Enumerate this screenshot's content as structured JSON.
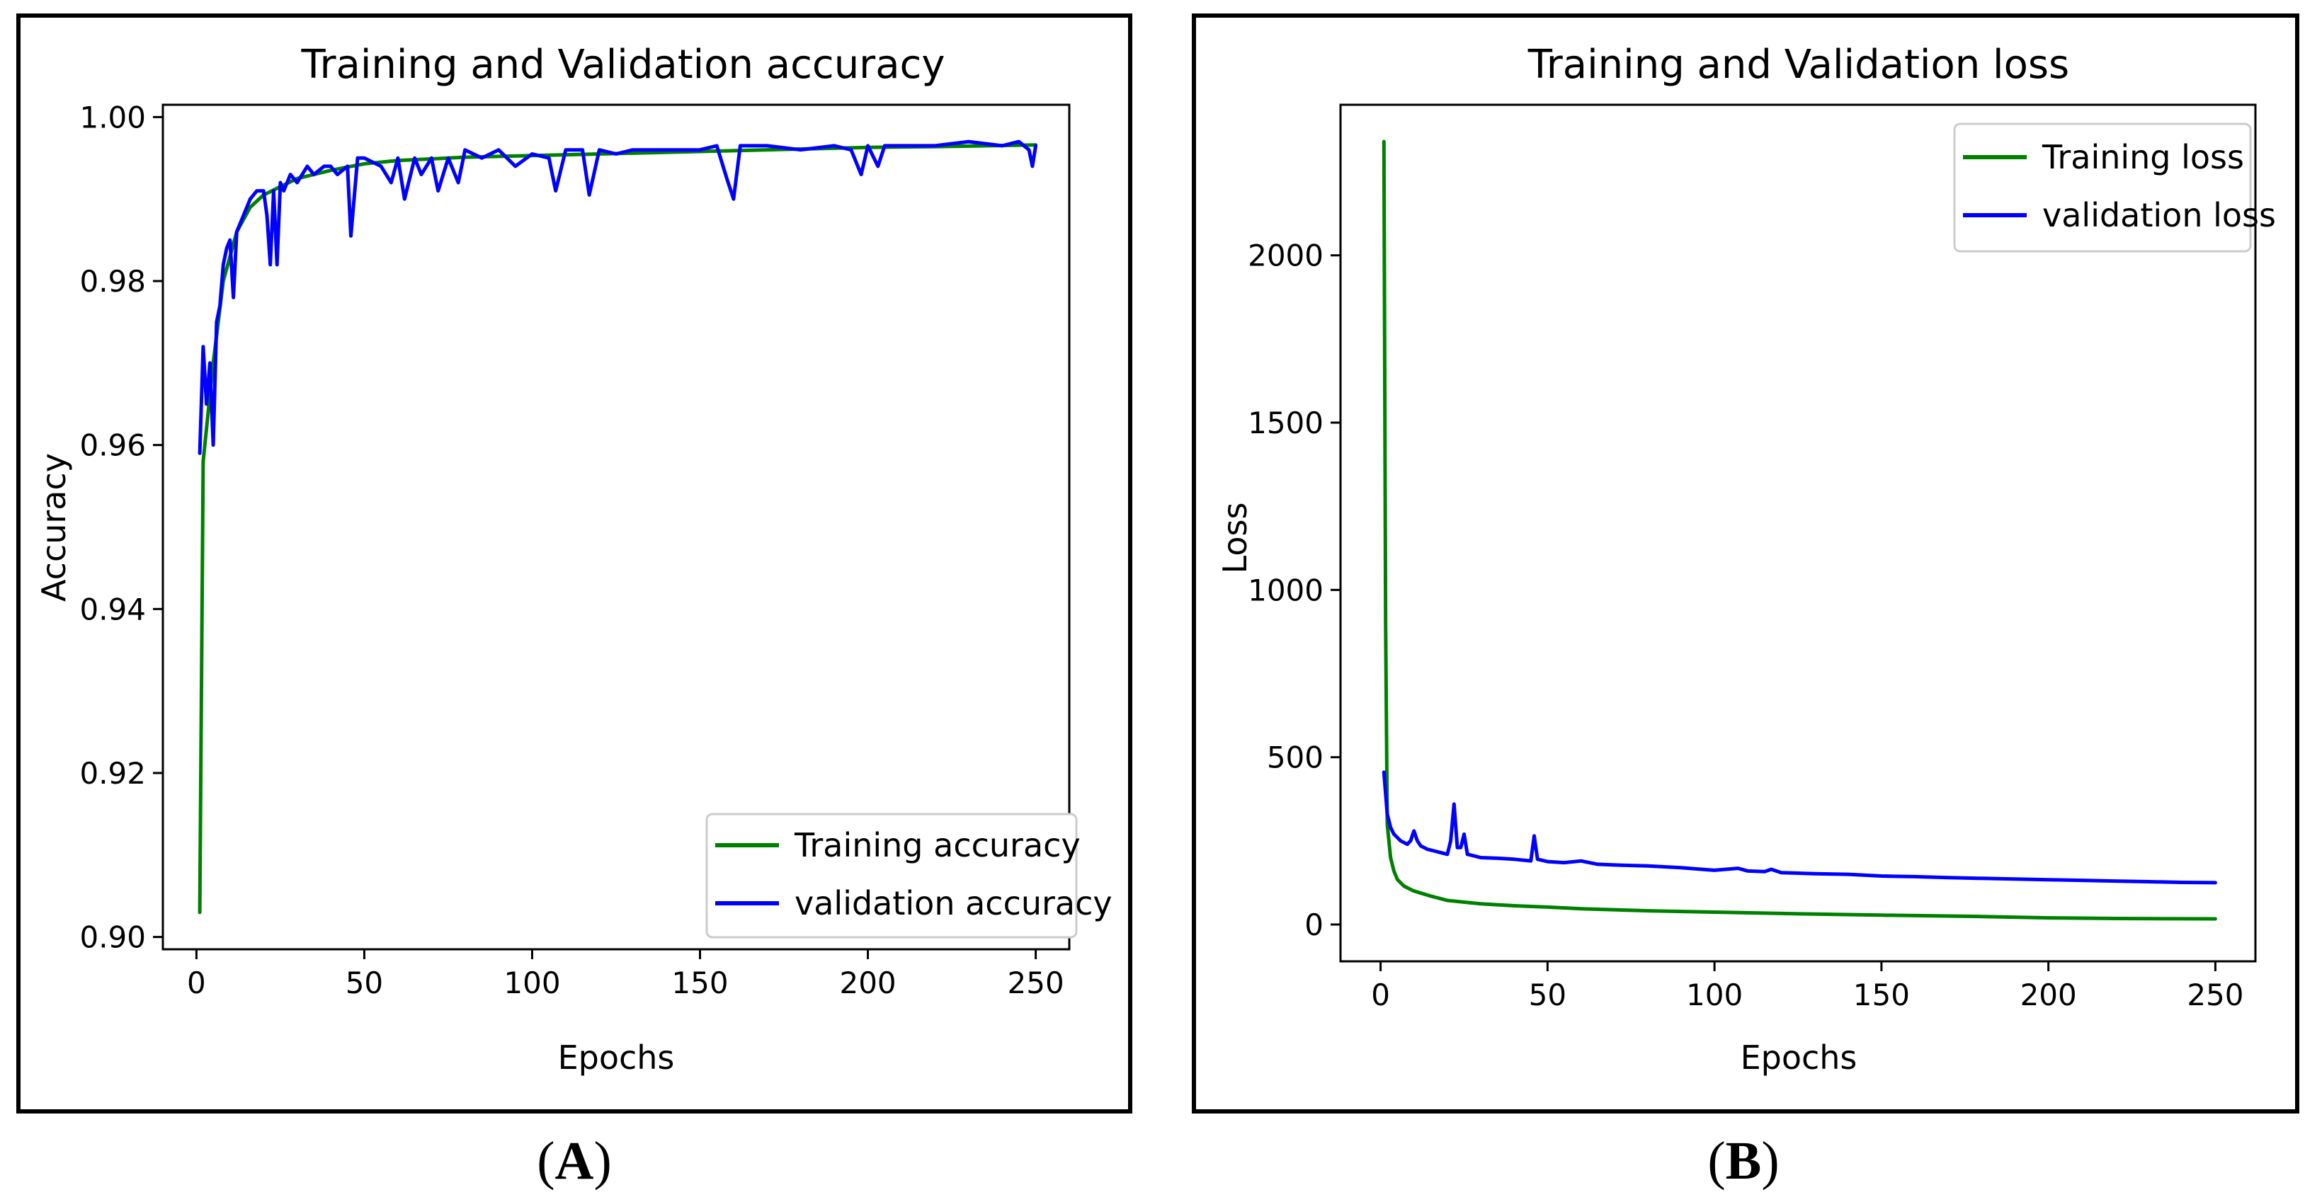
{
  "chart_data": [
    {
      "type": "line",
      "title": "Training and Validation accuracy",
      "xlabel": "Epochs",
      "ylabel": "Accuracy",
      "xlim": [
        -10,
        260
      ],
      "ylim": [
        0.8985,
        1.0015
      ],
      "xticks": [
        0,
        50,
        100,
        150,
        200,
        250
      ],
      "yticks": [
        0.9,
        0.92,
        0.94,
        0.96,
        0.98,
        1.0
      ],
      "xtick_labels": [
        "0",
        "50",
        "100",
        "150",
        "200",
        "250"
      ],
      "ytick_labels": [
        "0.90",
        "0.92",
        "0.94",
        "0.96",
        "0.98",
        "1.00"
      ],
      "legend_position": "lower-right",
      "panel_label": "A",
      "series": [
        {
          "name": "Training accuracy",
          "color": "#008000",
          "x": [
            1,
            2,
            3,
            5,
            8,
            12,
            16,
            20,
            25,
            30,
            40,
            50,
            60,
            80,
            100,
            120,
            150,
            180,
            200,
            220,
            250
          ],
          "y": [
            0.903,
            0.958,
            0.962,
            0.97,
            0.98,
            0.986,
            0.989,
            0.9905,
            0.9915,
            0.9925,
            0.9935,
            0.9943,
            0.9947,
            0.9951,
            0.9953,
            0.9955,
            0.9958,
            0.9961,
            0.9963,
            0.9964,
            0.9966
          ]
        },
        {
          "name": "validation accuracy",
          "color": "#0000ff",
          "x": [
            1,
            2,
            3,
            4,
            5,
            6,
            7,
            8,
            9,
            10,
            11,
            12,
            14,
            16,
            18,
            20,
            21,
            22,
            23,
            24,
            25,
            26,
            28,
            30,
            33,
            35,
            38,
            40,
            42,
            45,
            46,
            48,
            50,
            55,
            58,
            60,
            62,
            65,
            67,
            70,
            72,
            75,
            78,
            80,
            85,
            90,
            95,
            100,
            105,
            107,
            110,
            115,
            117,
            120,
            125,
            130,
            140,
            150,
            155,
            158,
            160,
            162,
            170,
            180,
            190,
            195,
            198,
            200,
            203,
            205,
            210,
            220,
            230,
            240,
            245,
            248,
            249,
            250
          ],
          "y": [
            0.959,
            0.972,
            0.965,
            0.97,
            0.96,
            0.975,
            0.977,
            0.982,
            0.984,
            0.985,
            0.978,
            0.986,
            0.988,
            0.99,
            0.991,
            0.991,
            0.988,
            0.982,
            0.991,
            0.982,
            0.992,
            0.991,
            0.993,
            0.992,
            0.994,
            0.993,
            0.994,
            0.994,
            0.993,
            0.994,
            0.9855,
            0.995,
            0.995,
            0.994,
            0.992,
            0.995,
            0.99,
            0.995,
            0.993,
            0.995,
            0.991,
            0.995,
            0.992,
            0.996,
            0.995,
            0.996,
            0.994,
            0.9955,
            0.995,
            0.991,
            0.996,
            0.996,
            0.9905,
            0.996,
            0.9955,
            0.996,
            0.996,
            0.996,
            0.9965,
            0.9925,
            0.99,
            0.9965,
            0.9965,
            0.996,
            0.9965,
            0.996,
            0.993,
            0.9965,
            0.994,
            0.9965,
            0.9965,
            0.9965,
            0.997,
            0.9965,
            0.997,
            0.996,
            0.994,
            0.9965
          ]
        }
      ]
    },
    {
      "type": "line",
      "title": "Training and Validation loss",
      "xlabel": "Epochs",
      "ylabel": "Loss",
      "xlim": [
        -12,
        262
      ],
      "ylim": [
        -110,
        2450
      ],
      "xticks": [
        0,
        50,
        100,
        150,
        200,
        250
      ],
      "yticks": [
        0,
        500,
        1000,
        1500,
        2000
      ],
      "xtick_labels": [
        "0",
        "50",
        "100",
        "150",
        "200",
        "250"
      ],
      "ytick_labels": [
        "0",
        "500",
        "1000",
        "1500",
        "2000"
      ],
      "legend_position": "upper-right",
      "panel_label": "B",
      "series": [
        {
          "name": "Training loss",
          "color": "#008000",
          "x": [
            1,
            1.5,
            2,
            3,
            4,
            5,
            7,
            10,
            15,
            20,
            30,
            40,
            50,
            60,
            80,
            100,
            120,
            150,
            180,
            200,
            220,
            250
          ],
          "y": [
            2340,
            900,
            300,
            200,
            160,
            135,
            115,
            100,
            85,
            72,
            62,
            56,
            52,
            47,
            41,
            37,
            33,
            28,
            24,
            20,
            18,
            17
          ]
        },
        {
          "name": "validation loss",
          "color": "#0000ff",
          "x": [
            1,
            2,
            3,
            4,
            5,
            6,
            7,
            8,
            9,
            10,
            11,
            12,
            14,
            16,
            18,
            20,
            21,
            22,
            23,
            24,
            25,
            26,
            28,
            30,
            35,
            40,
            45,
            46,
            47,
            50,
            55,
            60,
            65,
            70,
            80,
            90,
            100,
            107,
            110,
            115,
            117,
            120,
            130,
            140,
            150,
            160,
            170,
            180,
            190,
            200,
            210,
            220,
            230,
            240,
            250
          ],
          "y": [
            455,
            330,
            290,
            270,
            260,
            250,
            245,
            240,
            250,
            280,
            250,
            235,
            225,
            220,
            215,
            210,
            250,
            360,
            230,
            230,
            270,
            210,
            205,
            200,
            198,
            195,
            190,
            265,
            195,
            188,
            185,
            190,
            180,
            178,
            175,
            170,
            162,
            168,
            160,
            158,
            165,
            155,
            152,
            150,
            145,
            143,
            140,
            138,
            136,
            134,
            132,
            130,
            128,
            126,
            125
          ]
        }
      ]
    }
  ]
}
